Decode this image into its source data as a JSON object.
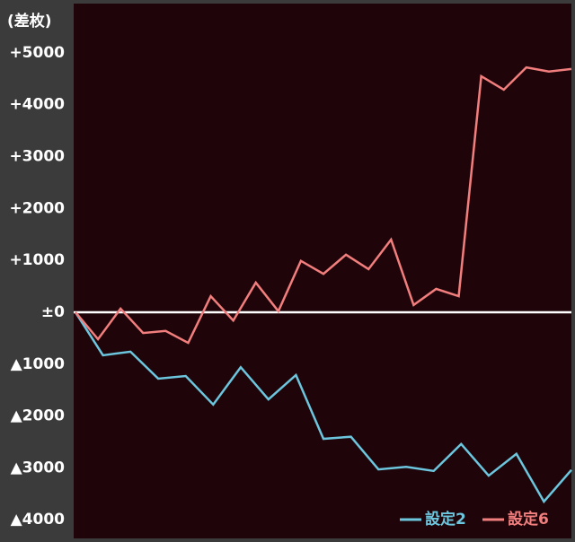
{
  "chart_data": {
    "type": "line",
    "y_axis_label": "(差枚)",
    "xlim": [
      0,
      22
    ],
    "ylim": [
      -4360,
      5950
    ],
    "yticks": [
      {
        "value": 5000,
        "label": "+5000"
      },
      {
        "value": 4000,
        "label": "+4000"
      },
      {
        "value": 3000,
        "label": "+3000"
      },
      {
        "value": 2000,
        "label": "+2000"
      },
      {
        "value": 1000,
        "label": "+1000"
      },
      {
        "value": 0,
        "label": "±0"
      },
      {
        "value": -1000,
        "label": "▲1000"
      },
      {
        "value": -2000,
        "label": "▲2000"
      },
      {
        "value": -3000,
        "label": "▲3000"
      },
      {
        "value": -4000,
        "label": "▲4000"
      }
    ],
    "legend": "bottom-right",
    "series": [
      {
        "name": "設定2",
        "color": "#6cc6de",
        "x": [
          0,
          1.22,
          2.44,
          3.67,
          4.89,
          6.11,
          7.33,
          8.56,
          9.78,
          11,
          12.22,
          13.44,
          14.67,
          15.89,
          17.11,
          18.33,
          19.56,
          20.78,
          22
        ],
        "values": [
          0,
          -830,
          -760,
          -1280,
          -1230,
          -1780,
          -1060,
          -1680,
          -1210,
          -2440,
          -2400,
          -3030,
          -2980,
          -3060,
          -2540,
          -3150,
          -2730,
          -3650,
          -3040
        ]
      },
      {
        "name": "設定6",
        "color": "#f27e7e",
        "x": [
          0,
          1,
          2,
          3,
          4,
          5,
          6,
          7,
          8,
          9,
          10,
          11,
          12,
          13,
          14,
          15,
          16,
          17,
          18,
          19,
          20,
          21,
          22
        ],
        "values": [
          0,
          -520,
          70,
          -400,
          -360,
          -590,
          310,
          -160,
          570,
          20,
          990,
          740,
          1110,
          830,
          1400,
          140,
          450,
          310,
          4550,
          4290,
          4720,
          4640,
          4690
        ]
      }
    ]
  }
}
